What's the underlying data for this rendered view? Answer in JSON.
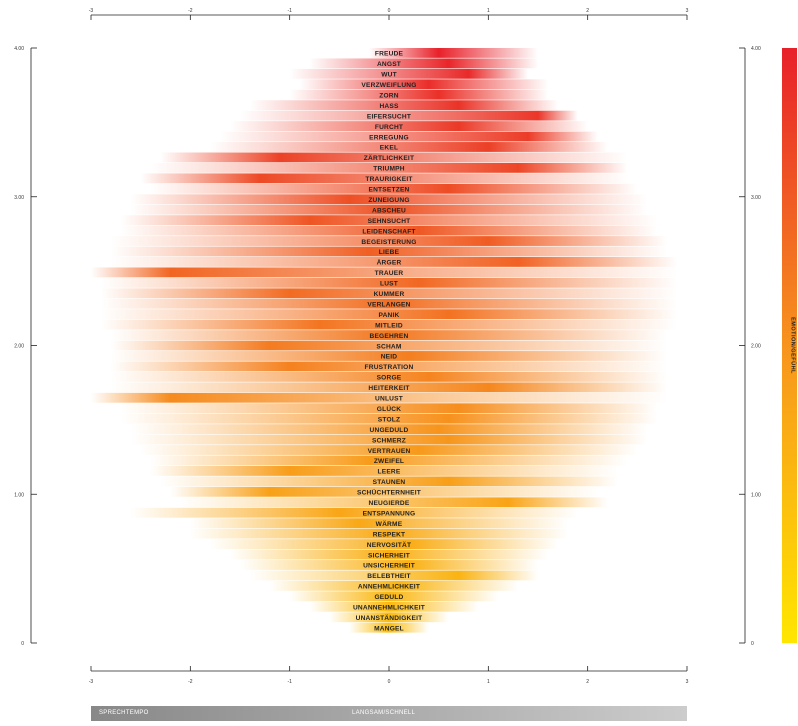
{
  "chart_data": {
    "type": "heatmap",
    "x_ticks": [
      "-3",
      "-2",
      "-1",
      "0",
      "1",
      "2",
      "3"
    ],
    "y_ticks": [
      "4.00",
      "3.00",
      "2.00",
      "1.00",
      "0"
    ],
    "legend_ticks": [
      "4.00",
      "3.00",
      "2.00",
      "1.00",
      "0"
    ],
    "legend_title": "EMOTION/GEFÜHL",
    "xlabel": "SPRECHTEMPO",
    "xlabel_sub": "LANGSAM/SCHNELL",
    "xlim": [
      -3,
      3
    ],
    "ylim": [
      0,
      4
    ],
    "colors": {
      "low": "#ffe600",
      "mid": "#f7941d",
      "high": "#e8202a"
    },
    "rows": [
      {
        "label": "FREUDE",
        "value": 3.98,
        "start": -0.2,
        "end": 1.5,
        "peak": 0.5
      },
      {
        "label": "ANGST",
        "value": 3.91,
        "start": -0.8,
        "end": 1.5,
        "peak": 0.6
      },
      {
        "label": "WUT",
        "value": 3.84,
        "start": -1.0,
        "end": 1.4,
        "peak": 0.8
      },
      {
        "label": "VERZWEIFLUNG",
        "value": 3.78,
        "start": -0.9,
        "end": 1.6,
        "peak": 0.4
      },
      {
        "label": "ZORN",
        "value": 3.73,
        "start": -1.0,
        "end": 1.6,
        "peak": 0.5
      },
      {
        "label": "HASS",
        "value": 3.68,
        "start": -1.4,
        "end": 1.7,
        "peak": 0.7
      },
      {
        "label": "EIFERSUCHT",
        "value": 3.62,
        "start": -1.5,
        "end": 1.9,
        "peak": 1.5
      },
      {
        "label": "FURCHT",
        "value": 3.57,
        "start": -1.6,
        "end": 2.0,
        "peak": 0.7
      },
      {
        "label": "ERREGUNG",
        "value": 3.51,
        "start": -1.7,
        "end": 2.1,
        "peak": 1.4
      },
      {
        "label": "EKEL",
        "value": 3.46,
        "start": -1.8,
        "end": 2.2,
        "peak": 1.0
      },
      {
        "label": "ZÄRTLICHKEIT",
        "value": 3.41,
        "start": -2.3,
        "end": 2.4,
        "peak": -1.1
      },
      {
        "label": "TRIUMPH",
        "value": 3.35,
        "start": -2.4,
        "end": 2.4,
        "peak": 1.3
      },
      {
        "label": "TRAURIGKEIT",
        "value": 3.3,
        "start": -2.5,
        "end": 2.4,
        "peak": -1.3
      },
      {
        "label": "ENTSETZEN",
        "value": 3.24,
        "start": -2.4,
        "end": 2.5,
        "peak": 0.6
      },
      {
        "label": "ZUNEIGUNG",
        "value": 3.19,
        "start": -2.6,
        "end": 2.6,
        "peak": -0.4
      },
      {
        "label": "ABSCHEU",
        "value": 3.14,
        "start": -2.6,
        "end": 2.6,
        "peak": 0.0
      },
      {
        "label": "SEHNSUCHT",
        "value": 3.08,
        "start": -2.7,
        "end": 2.7,
        "peak": -0.8
      },
      {
        "label": "LEIDENSCHAFT",
        "value": 3.03,
        "start": -2.7,
        "end": 2.7,
        "peak": 0.3
      },
      {
        "label": "BEGEISTERUNG",
        "value": 2.97,
        "start": -2.8,
        "end": 2.8,
        "peak": 1.0
      },
      {
        "label": "LIEBE",
        "value": 2.92,
        "start": -2.8,
        "end": 2.8,
        "peak": -0.2
      },
      {
        "label": "ÄRGER",
        "value": 2.86,
        "start": -2.8,
        "end": 2.9,
        "peak": 1.3
      },
      {
        "label": "TRAUER",
        "value": 2.81,
        "start": -3.0,
        "end": 2.9,
        "peak": -2.2
      },
      {
        "label": "LUST",
        "value": 2.76,
        "start": -2.9,
        "end": 2.9,
        "peak": 0.3
      },
      {
        "label": "KUMMER",
        "value": 2.7,
        "start": -2.9,
        "end": 2.9,
        "peak": -1.0
      },
      {
        "label": "VERLANGEN",
        "value": 2.65,
        "start": -2.9,
        "end": 2.9,
        "peak": 0.0
      },
      {
        "label": "PANIK",
        "value": 2.59,
        "start": -2.9,
        "end": 2.9,
        "peak": 0.6
      },
      {
        "label": "MITLEID",
        "value": 2.54,
        "start": -2.9,
        "end": 2.9,
        "peak": -0.7
      },
      {
        "label": "BEGEHREN",
        "value": 2.49,
        "start": -2.8,
        "end": 2.8,
        "peak": 0.0
      },
      {
        "label": "SCHAM",
        "value": 2.43,
        "start": -2.8,
        "end": 2.8,
        "peak": -1.2
      },
      {
        "label": "NEID",
        "value": 2.38,
        "start": -2.8,
        "end": 2.8,
        "peak": 0.2
      },
      {
        "label": "FRUSTRATION",
        "value": 2.32,
        "start": -2.8,
        "end": 2.8,
        "peak": -1.0
      },
      {
        "label": "SORGE",
        "value": 2.27,
        "start": -2.8,
        "end": 2.8,
        "peak": 0.4
      },
      {
        "label": "HEITERKEIT",
        "value": 2.22,
        "start": -2.8,
        "end": 2.8,
        "peak": 1.0
      },
      {
        "label": "UNLUST",
        "value": 2.16,
        "start": -3.0,
        "end": 2.8,
        "peak": -2.2
      },
      {
        "label": "GLÜCK",
        "value": 2.11,
        "start": -2.7,
        "end": 2.7,
        "peak": 0.7
      },
      {
        "label": "STOLZ",
        "value": 2.05,
        "start": -2.7,
        "end": 2.7,
        "peak": 0.6
      },
      {
        "label": "UNGEDULD",
        "value": 2.0,
        "start": -2.6,
        "end": 2.6,
        "peak": 0.5
      },
      {
        "label": "SCHMERZ",
        "value": 1.95,
        "start": -2.6,
        "end": 2.6,
        "peak": 0.6
      },
      {
        "label": "VERTRAUEN",
        "value": 1.89,
        "start": -2.5,
        "end": 2.5,
        "peak": 0.3
      },
      {
        "label": "ZWEIFEL",
        "value": 1.84,
        "start": -2.4,
        "end": 2.4,
        "peak": -0.2
      },
      {
        "label": "LEERE",
        "value": 1.78,
        "start": -2.4,
        "end": 2.3,
        "peak": -1.0
      },
      {
        "label": "STAUNEN",
        "value": 1.73,
        "start": -2.3,
        "end": 2.3,
        "peak": 0.6
      },
      {
        "label": "SCHÜCHTERNHEIT",
        "value": 1.68,
        "start": -2.2,
        "end": 2.1,
        "peak": -1.2
      },
      {
        "label": "NEUGIERDE",
        "value": 1.62,
        "start": -2.1,
        "end": 2.2,
        "peak": 1.2
      },
      {
        "label": "ENTSPANNUNG",
        "value": 1.57,
        "start": -2.6,
        "end": 1.9,
        "peak": -0.5
      },
      {
        "label": "WÄRME",
        "value": 1.51,
        "start": -2.0,
        "end": 1.8,
        "peak": -0.3
      },
      {
        "label": "RESPEKT",
        "value": 1.46,
        "start": -2.0,
        "end": 1.8,
        "peak": 0.0
      },
      {
        "label": "NERVOSITÄT",
        "value": 1.41,
        "start": -1.8,
        "end": 1.7,
        "peak": 0.2
      },
      {
        "label": "SICHERHEIT",
        "value": 1.35,
        "start": -1.6,
        "end": 1.6,
        "peak": 0.0
      },
      {
        "label": "UNSICHERHEIT",
        "value": 1.3,
        "start": -1.5,
        "end": 1.5,
        "peak": 0.2
      },
      {
        "label": "BELEBTHEIT",
        "value": 1.24,
        "start": -1.4,
        "end": 1.5,
        "peak": 0.7
      },
      {
        "label": "ANNEHMLICHKEIT",
        "value": 1.19,
        "start": -1.2,
        "end": 1.3,
        "peak": 0.1
      },
      {
        "label": "GEDULD",
        "value": 1.14,
        "start": -1.0,
        "end": 1.1,
        "peak": 0.0
      },
      {
        "label": "UNANNEHMLICHKEIT",
        "value": 1.08,
        "start": -0.8,
        "end": 0.9,
        "peak": 0.0
      },
      {
        "label": "UNANSTÄNDIGKEIT",
        "value": 1.03,
        "start": -0.6,
        "end": 0.6,
        "peak": 0.0
      },
      {
        "label": "MANGEL",
        "value": 0.97,
        "start": -0.4,
        "end": 0.4,
        "peak": 0.0
      }
    ]
  }
}
